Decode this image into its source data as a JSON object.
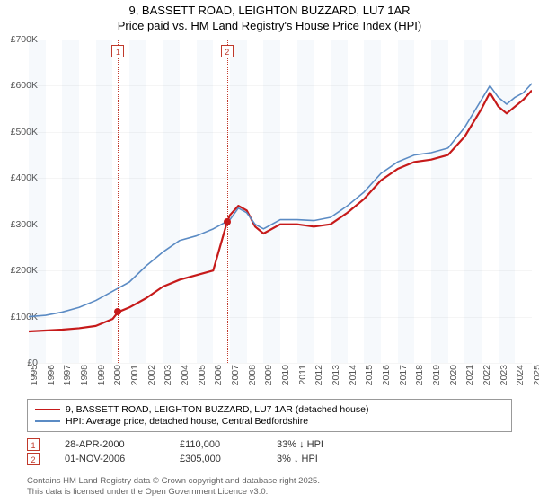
{
  "title": {
    "line1": "9, BASSETT ROAD, LEIGHTON BUZZARD, LU7 1AR",
    "line2": "Price paid vs. HM Land Registry's House Price Index (HPI)"
  },
  "chart": {
    "type": "line",
    "background_color": "#ffffff",
    "grid_color": "#f0f0f0",
    "band_color": "rgba(100,150,200,0.06)",
    "axis_font_size": 10.5,
    "x_min": 1995,
    "x_max": 2025,
    "y_min": 0,
    "y_max": 700000,
    "y_ticks": [
      0,
      100000,
      200000,
      300000,
      400000,
      500000,
      600000,
      700000
    ],
    "y_tick_labels": [
      "£0",
      "£100K",
      "£200K",
      "£300K",
      "£400K",
      "£500K",
      "£600K",
      "£700K"
    ],
    "x_ticks": [
      1995,
      1996,
      1997,
      1998,
      1999,
      2000,
      2001,
      2002,
      2003,
      2004,
      2005,
      2006,
      2007,
      2008,
      2009,
      2010,
      2011,
      2012,
      2013,
      2014,
      2015,
      2016,
      2017,
      2018,
      2019,
      2020,
      2021,
      2022,
      2023,
      2024,
      2025
    ],
    "series": [
      {
        "name": "price_paid",
        "label": "9, BASSETT ROAD, LEIGHTON BUZZARD, LU7 1AR (detached house)",
        "color": "#c61a1a",
        "line_width": 2.2,
        "points": [
          [
            1995.0,
            68000
          ],
          [
            1996.0,
            70000
          ],
          [
            1997.0,
            72000
          ],
          [
            1998.0,
            75000
          ],
          [
            1999.0,
            80000
          ],
          [
            2000.0,
            95000
          ],
          [
            2000.33,
            110000
          ],
          [
            2001.0,
            120000
          ],
          [
            2002.0,
            140000
          ],
          [
            2003.0,
            165000
          ],
          [
            2004.0,
            180000
          ],
          [
            2005.0,
            190000
          ],
          [
            2006.0,
            200000
          ],
          [
            2006.83,
            305000
          ],
          [
            2007.0,
            320000
          ],
          [
            2007.5,
            340000
          ],
          [
            2008.0,
            330000
          ],
          [
            2008.5,
            295000
          ],
          [
            2009.0,
            280000
          ],
          [
            2010.0,
            300000
          ],
          [
            2011.0,
            300000
          ],
          [
            2012.0,
            295000
          ],
          [
            2013.0,
            300000
          ],
          [
            2014.0,
            325000
          ],
          [
            2015.0,
            355000
          ],
          [
            2016.0,
            395000
          ],
          [
            2017.0,
            420000
          ],
          [
            2018.0,
            435000
          ],
          [
            2019.0,
            440000
          ],
          [
            2020.0,
            450000
          ],
          [
            2021.0,
            490000
          ],
          [
            2022.0,
            550000
          ],
          [
            2022.5,
            585000
          ],
          [
            2023.0,
            555000
          ],
          [
            2023.5,
            540000
          ],
          [
            2024.0,
            555000
          ],
          [
            2024.5,
            570000
          ],
          [
            2025.0,
            590000
          ]
        ]
      },
      {
        "name": "hpi",
        "label": "HPI: Average price, detached house, Central Bedfordshire",
        "color": "#5b8bc4",
        "line_width": 1.6,
        "points": [
          [
            1995.0,
            100000
          ],
          [
            1996.0,
            103000
          ],
          [
            1997.0,
            110000
          ],
          [
            1998.0,
            120000
          ],
          [
            1999.0,
            135000
          ],
          [
            2000.0,
            155000
          ],
          [
            2001.0,
            175000
          ],
          [
            2002.0,
            210000
          ],
          [
            2003.0,
            240000
          ],
          [
            2004.0,
            265000
          ],
          [
            2005.0,
            275000
          ],
          [
            2006.0,
            290000
          ],
          [
            2007.0,
            310000
          ],
          [
            2007.5,
            335000
          ],
          [
            2008.0,
            325000
          ],
          [
            2008.5,
            300000
          ],
          [
            2009.0,
            290000
          ],
          [
            2010.0,
            310000
          ],
          [
            2011.0,
            310000
          ],
          [
            2012.0,
            308000
          ],
          [
            2013.0,
            315000
          ],
          [
            2014.0,
            340000
          ],
          [
            2015.0,
            370000
          ],
          [
            2016.0,
            410000
          ],
          [
            2017.0,
            435000
          ],
          [
            2018.0,
            450000
          ],
          [
            2019.0,
            455000
          ],
          [
            2020.0,
            465000
          ],
          [
            2021.0,
            510000
          ],
          [
            2022.0,
            570000
          ],
          [
            2022.5,
            600000
          ],
          [
            2023.0,
            575000
          ],
          [
            2023.5,
            560000
          ],
          [
            2024.0,
            575000
          ],
          [
            2024.5,
            585000
          ],
          [
            2025.0,
            605000
          ]
        ]
      }
    ],
    "markers": [
      {
        "idx": "1",
        "x": 2000.33,
        "y": 110000,
        "dot_color": "#c61a1a"
      },
      {
        "idx": "2",
        "x": 2006.83,
        "y": 305000,
        "dot_color": "#c61a1a"
      }
    ]
  },
  "legend": {
    "border_color": "#999999",
    "font_size": 10.5,
    "items": [
      {
        "color": "#c61a1a",
        "width": 2,
        "label": "9, BASSETT ROAD, LEIGHTON BUZZARD, LU7 1AR (detached house)"
      },
      {
        "color": "#5b8bc4",
        "width": 1.5,
        "label": "HPI: Average price, detached house, Central Bedfordshire"
      }
    ]
  },
  "sales": [
    {
      "idx": "1",
      "date": "28-APR-2000",
      "price": "£110,000",
      "pct": "33% ↓ HPI"
    },
    {
      "idx": "2",
      "date": "01-NOV-2006",
      "price": "£305,000",
      "pct": "3% ↓ HPI"
    }
  ],
  "attribution": {
    "line1": "Contains HM Land Registry data © Crown copyright and database right 2025.",
    "line2": "This data is licensed under the Open Government Licence v3.0."
  }
}
